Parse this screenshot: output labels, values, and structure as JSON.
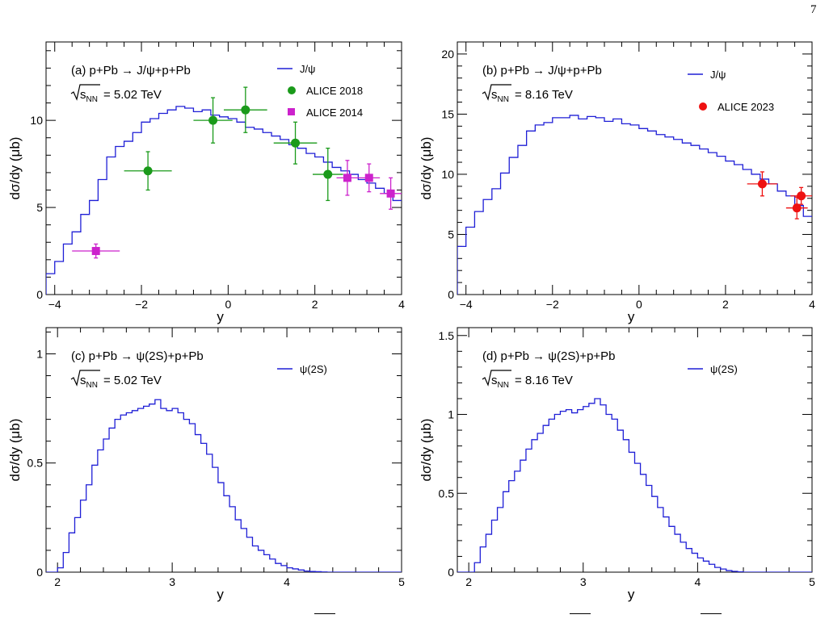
{
  "page_number": "7",
  "colors": {
    "model_line": "#1f1fd6",
    "alice_2018": "#1a9a1a",
    "alice_2014": "#cc22cc",
    "alice_2023": "#ee1111",
    "axis": "#000000"
  },
  "chart_data": [
    {
      "type": "line",
      "panel_label": "(a) p+Pb → J/ψ+p+Pb",
      "energy_label": "= 5.02 TeV",
      "xlabel": "y",
      "ylabel": "dσ/dy (μb)",
      "xlim": [
        -4.2,
        4.0
      ],
      "ylim": [
        0,
        14.5
      ],
      "xticks": [
        -4,
        -2,
        0,
        2,
        4
      ],
      "xtick_labels": [
        "−4",
        "−2",
        "0",
        "2",
        "4"
      ],
      "yticks": [
        0,
        5,
        10
      ],
      "ytick_labels": [
        "0",
        "5",
        "10"
      ],
      "legend_position": "top-right",
      "series": [
        {
          "name": "J/ψ",
          "kind": "step",
          "color_key": "model_line",
          "x_edges": [
            -4.2,
            -4.0,
            -3.8,
            -3.6,
            -3.4,
            -3.2,
            -3.0,
            -2.8,
            -2.6,
            -2.4,
            -2.2,
            -2.0,
            -1.8,
            -1.6,
            -1.4,
            -1.2,
            -1.0,
            -0.8,
            -0.6,
            -0.4,
            -0.2,
            0.0,
            0.2,
            0.4,
            0.6,
            0.8,
            1.0,
            1.2,
            1.4,
            1.6,
            1.8,
            2.0,
            2.2,
            2.4,
            2.6,
            2.8,
            3.0,
            3.2,
            3.4,
            3.6,
            3.8,
            4.0
          ],
          "values": [
            1.2,
            1.9,
            2.9,
            3.6,
            4.6,
            5.4,
            6.6,
            7.9,
            8.5,
            8.8,
            9.3,
            9.9,
            10.1,
            10.4,
            10.6,
            10.8,
            10.7,
            10.5,
            10.6,
            10.3,
            10.2,
            10.1,
            9.9,
            9.6,
            9.5,
            9.3,
            9.1,
            8.9,
            8.6,
            8.4,
            8.1,
            7.9,
            7.6,
            7.3,
            7.1,
            6.9,
            6.6,
            6.4,
            6.1,
            5.8,
            5.4
          ]
        },
        {
          "name": "ALICE 2018",
          "kind": "points",
          "marker": "circle",
          "color_key": "alice_2018",
          "points": [
            {
              "x": -1.85,
              "y": 7.1,
              "xerr": 0.55,
              "yerr": 1.1
            },
            {
              "x": -0.35,
              "y": 10.0,
              "xerr": 0.45,
              "yerr": 1.3
            },
            {
              "x": 0.4,
              "y": 10.6,
              "xerr": 0.5,
              "yerr": 1.3
            },
            {
              "x": 1.55,
              "y": 8.7,
              "xerr": 0.5,
              "yerr": 1.2
            },
            {
              "x": 2.3,
              "y": 6.9,
              "xerr": 0.35,
              "yerr": 1.5
            }
          ]
        },
        {
          "name": "ALICE 2014",
          "kind": "points",
          "marker": "square",
          "color_key": "alice_2014",
          "points": [
            {
              "x": -3.05,
              "y": 2.5,
              "xerr": 0.55,
              "yerr": 0.4
            },
            {
              "x": 2.75,
              "y": 6.7,
              "xerr": 0.25,
              "yerr": 1.0
            },
            {
              "x": 3.25,
              "y": 6.7,
              "xerr": 0.25,
              "yerr": 0.8
            },
            {
              "x": 3.75,
              "y": 5.8,
              "xerr": 0.25,
              "yerr": 0.9
            }
          ]
        }
      ]
    },
    {
      "type": "line",
      "panel_label": "(b) p+Pb → J/ψ+p+Pb",
      "energy_label": "= 8.16 TeV",
      "xlabel": "y",
      "ylabel": "dσ/dy (μb)",
      "xlim": [
        -4.2,
        4.0
      ],
      "ylim": [
        0,
        21
      ],
      "xticks": [
        -4,
        -2,
        0,
        2,
        4
      ],
      "xtick_labels": [
        "−4",
        "−2",
        "0",
        "2",
        "4"
      ],
      "yticks": [
        0,
        5,
        10,
        15,
        20
      ],
      "ytick_labels": [
        "0",
        "5",
        "10",
        "15",
        "20"
      ],
      "legend_position": "top-right",
      "series": [
        {
          "name": "J/ψ",
          "kind": "step",
          "color_key": "model_line",
          "x_edges": [
            -4.2,
            -4.0,
            -3.8,
            -3.6,
            -3.4,
            -3.2,
            -3.0,
            -2.8,
            -2.6,
            -2.4,
            -2.2,
            -2.0,
            -1.8,
            -1.6,
            -1.4,
            -1.2,
            -1.0,
            -0.8,
            -0.6,
            -0.4,
            -0.2,
            0.0,
            0.2,
            0.4,
            0.6,
            0.8,
            1.0,
            1.2,
            1.4,
            1.6,
            1.8,
            2.0,
            2.2,
            2.4,
            2.6,
            2.8,
            3.0,
            3.2,
            3.4,
            3.6,
            3.8,
            4.0
          ],
          "values": [
            4.0,
            5.6,
            6.9,
            7.9,
            8.8,
            10.1,
            11.4,
            12.4,
            13.6,
            14.1,
            14.3,
            14.7,
            14.7,
            14.9,
            14.6,
            14.8,
            14.7,
            14.4,
            14.6,
            14.2,
            14.1,
            13.8,
            13.6,
            13.3,
            13.1,
            12.9,
            12.6,
            12.4,
            12.1,
            11.8,
            11.5,
            11.1,
            10.8,
            10.4,
            10.0,
            9.6,
            9.2,
            8.6,
            8.2,
            7.4,
            6.5
          ]
        },
        {
          "name": "ALICE 2023",
          "kind": "points",
          "marker": "circle",
          "color_key": "alice_2023",
          "points": [
            {
              "x": 2.85,
              "y": 9.2,
              "xerr": 0.35,
              "yerr": 1.0
            },
            {
              "x": 3.65,
              "y": 7.2,
              "xerr": 0.25,
              "yerr": 0.9
            },
            {
              "x": 3.75,
              "y": 8.2,
              "xerr": 0.25,
              "yerr": 0.7
            }
          ]
        }
      ]
    },
    {
      "type": "line",
      "panel_label": "(c) p+Pb  →  ψ(2S)+p+Pb",
      "energy_label": "= 5.02 TeV",
      "xlabel": "y",
      "ylabel": "dσ/dy (μb)",
      "xlim": [
        1.9,
        5.0
      ],
      "ylim": [
        0,
        1.12
      ],
      "xticks": [
        2,
        3,
        4,
        5
      ],
      "xtick_labels": [
        "2",
        "3",
        "4",
        "5"
      ],
      "yticks": [
        0,
        0.5,
        1
      ],
      "ytick_labels": [
        "0",
        "0.5",
        "1"
      ],
      "legend_position": "top-right",
      "series": [
        {
          "name": "ψ(2S)",
          "kind": "step",
          "color_key": "model_line",
          "x_edges": [
            1.9,
            1.95,
            2.0,
            2.05,
            2.1,
            2.15,
            2.2,
            2.25,
            2.3,
            2.35,
            2.4,
            2.45,
            2.5,
            2.55,
            2.6,
            2.65,
            2.7,
            2.75,
            2.8,
            2.85,
            2.9,
            2.95,
            3.0,
            3.05,
            3.1,
            3.15,
            3.2,
            3.25,
            3.3,
            3.35,
            3.4,
            3.45,
            3.5,
            3.55,
            3.6,
            3.65,
            3.7,
            3.75,
            3.8,
            3.85,
            3.9,
            3.95,
            4.0,
            4.05,
            4.1,
            4.15,
            4.2,
            4.25,
            4.3,
            4.35,
            4.4,
            4.45,
            4.5,
            4.55,
            4.6,
            4.65,
            4.7,
            4.75,
            4.8,
            4.85,
            4.9,
            4.95,
            5.0
          ],
          "values": [
            0,
            0,
            0.02,
            0.09,
            0.18,
            0.25,
            0.33,
            0.4,
            0.49,
            0.56,
            0.61,
            0.66,
            0.7,
            0.72,
            0.73,
            0.74,
            0.75,
            0.76,
            0.77,
            0.79,
            0.75,
            0.74,
            0.75,
            0.73,
            0.7,
            0.68,
            0.63,
            0.59,
            0.54,
            0.48,
            0.41,
            0.35,
            0.3,
            0.24,
            0.2,
            0.16,
            0.12,
            0.1,
            0.08,
            0.06,
            0.04,
            0.03,
            0.02,
            0.015,
            0.01,
            0.005,
            0.003,
            0.002,
            0.001,
            0,
            0,
            0,
            0,
            0,
            0,
            0,
            0,
            0,
            0,
            0,
            0,
            0
          ]
        }
      ]
    },
    {
      "type": "line",
      "panel_label": "(d) p+Pb  →  ψ(2S)+p+Pb",
      "energy_label": "= 8.16 TeV",
      "xlabel": "y",
      "ylabel": "dσ/dy (μb)",
      "xlim": [
        1.9,
        5.0
      ],
      "ylim": [
        0,
        1.55
      ],
      "xticks": [
        2,
        3,
        4,
        5
      ],
      "xtick_labels": [
        "2",
        "3",
        "4",
        "5"
      ],
      "yticks": [
        0,
        0.5,
        1,
        1.5
      ],
      "ytick_labels": [
        "0",
        "0.5",
        "1",
        "1.5"
      ],
      "legend_position": "top-right",
      "series": [
        {
          "name": "ψ(2S)",
          "kind": "step",
          "color_key": "model_line",
          "x_edges": [
            1.9,
            1.95,
            2.0,
            2.05,
            2.1,
            2.15,
            2.2,
            2.25,
            2.3,
            2.35,
            2.4,
            2.45,
            2.5,
            2.55,
            2.6,
            2.65,
            2.7,
            2.75,
            2.8,
            2.85,
            2.9,
            2.95,
            3.0,
            3.05,
            3.1,
            3.15,
            3.2,
            3.25,
            3.3,
            3.35,
            3.4,
            3.45,
            3.5,
            3.55,
            3.6,
            3.65,
            3.7,
            3.75,
            3.8,
            3.85,
            3.9,
            3.95,
            4.0,
            4.05,
            4.1,
            4.15,
            4.2,
            4.25,
            4.3,
            4.35,
            4.4,
            4.45,
            4.5,
            4.55,
            4.6,
            4.65,
            4.7,
            4.75,
            4.8,
            4.85,
            4.9,
            4.95,
            5.0
          ],
          "values": [
            0,
            0,
            0,
            0.06,
            0.16,
            0.24,
            0.33,
            0.41,
            0.51,
            0.58,
            0.64,
            0.71,
            0.78,
            0.84,
            0.88,
            0.93,
            0.97,
            1.0,
            1.02,
            1.03,
            1.01,
            1.03,
            1.05,
            1.07,
            1.1,
            1.06,
            1.0,
            0.97,
            0.9,
            0.84,
            0.76,
            0.69,
            0.62,
            0.55,
            0.48,
            0.41,
            0.35,
            0.29,
            0.24,
            0.19,
            0.15,
            0.12,
            0.09,
            0.07,
            0.05,
            0.03,
            0.02,
            0.01,
            0.005,
            0.002,
            0,
            0,
            0,
            0,
            0,
            0,
            0,
            0,
            0,
            0,
            0,
            0
          ]
        }
      ]
    }
  ]
}
